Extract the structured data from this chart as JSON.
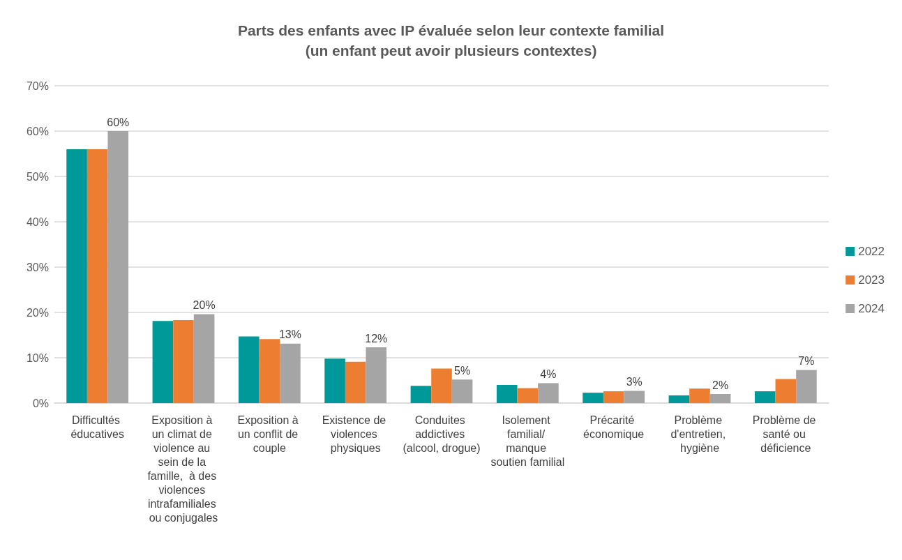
{
  "chart_data": {
    "type": "bar",
    "title": "Parts des enfants avec IP évaluée selon leur contexte familial",
    "subtitle": "(un enfant peut avoir plusieurs contextes)",
    "categories": [
      "Difficultés éducatives",
      "Exposition à un climat de violence au sein de la famille,  à des violences intrafamiliales ou conjugales",
      "Exposition à un conflit de couple",
      "Existence de violences physiques",
      "Conduites addictives (alcool, drogue)",
      "Isolement familial/ manque soutien familial",
      "Précarité économique",
      "Problème d'entretien, hygiène",
      "Problème de santé ou déficience"
    ],
    "series": [
      {
        "name": "2022",
        "color": "#009999",
        "values": [
          56,
          18.1,
          14.7,
          9.8,
          3.8,
          4.0,
          2.3,
          1.7,
          2.6
        ]
      },
      {
        "name": "2023",
        "color": "#ed7d31",
        "values": [
          56,
          18.3,
          14.1,
          9.1,
          7.6,
          3.3,
          2.6,
          3.2,
          5.3
        ]
      },
      {
        "name": "2024",
        "color": "#a5a5a5",
        "values": [
          60,
          19.6,
          13.1,
          12.3,
          5.2,
          4.4,
          2.7,
          2.0,
          7.3
        ],
        "value_labels": [
          "60%",
          "20%",
          "13%",
          "12%",
          "5%",
          "4%",
          "3%",
          "2%",
          "7%"
        ]
      }
    ],
    "ylim": [
      0,
      70
    ],
    "yticks": [
      {
        "value": 0,
        "label": "0%"
      },
      {
        "value": 10,
        "label": "10%"
      },
      {
        "value": 20,
        "label": "20%"
      },
      {
        "value": 30,
        "label": "30%"
      },
      {
        "value": 40,
        "label": "40%"
      },
      {
        "value": 50,
        "label": "50%"
      },
      {
        "value": 60,
        "label": "60%"
      },
      {
        "value": 70,
        "label": "70%"
      }
    ],
    "grid": "y",
    "legend": "right"
  }
}
